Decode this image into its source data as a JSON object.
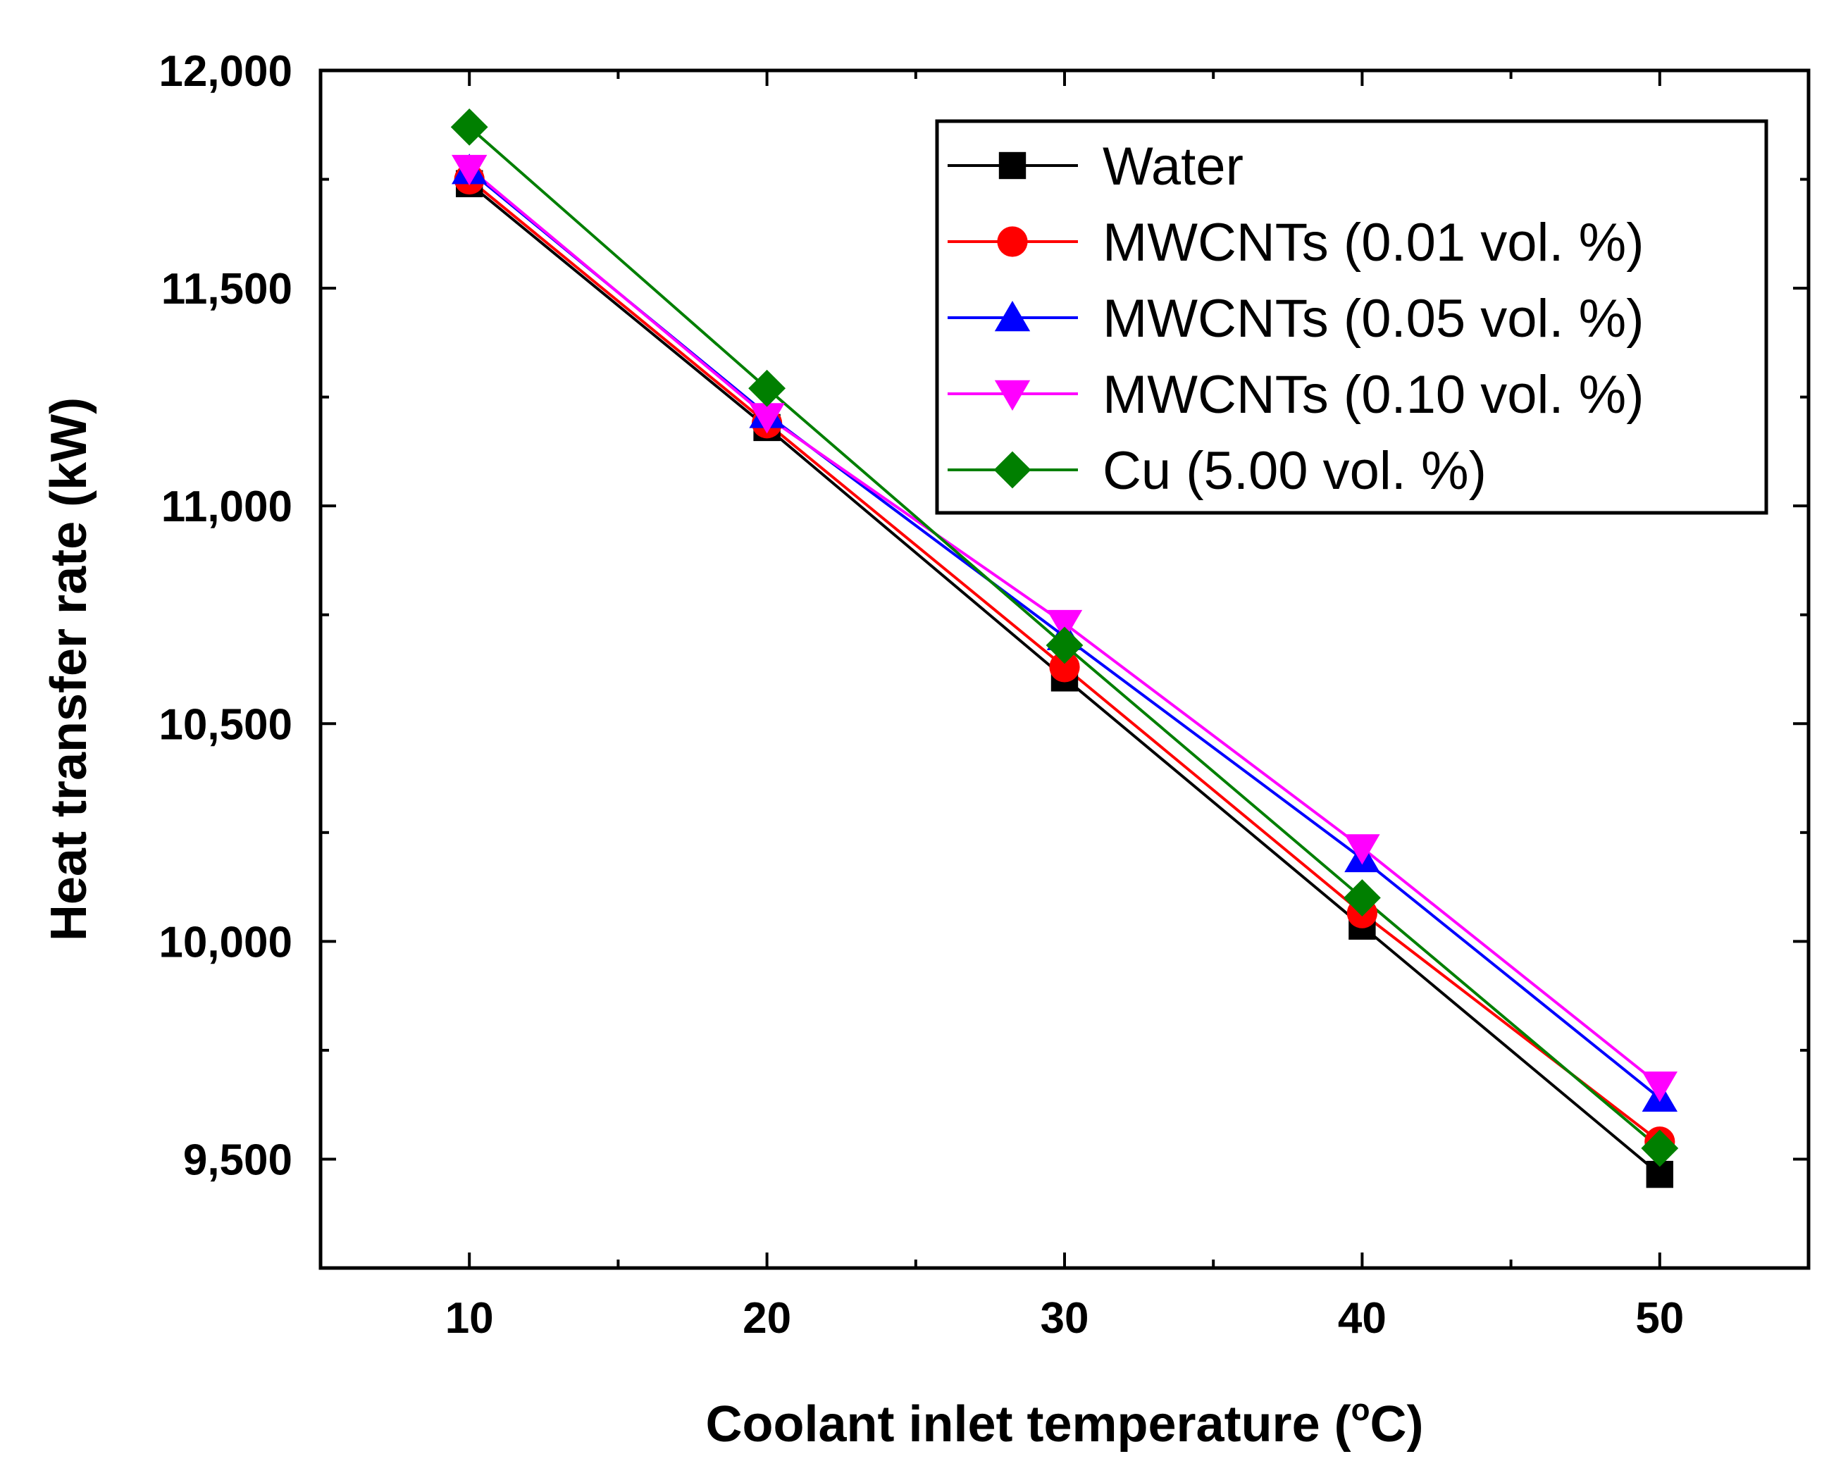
{
  "chart_data": {
    "type": "line",
    "title": "",
    "xlabel": "Coolant inlet temperature (",
    "xlabel_unit_degree": "o",
    "xlabel_unit_suffix": "C)",
    "ylabel": "Heat transfer rate (kW)",
    "x": [
      10,
      20,
      30,
      40,
      50
    ],
    "xlim": [
      5,
      55
    ],
    "ylim": [
      9250,
      12000
    ],
    "xticks": [
      10,
      20,
      30,
      40,
      50
    ],
    "xtick_labels": [
      "10",
      "20",
      "30",
      "40",
      "50"
    ],
    "yticks": [
      9500,
      10000,
      10500,
      11000,
      11500,
      12000
    ],
    "ytick_labels": [
      "9,500",
      "10,000",
      "10,500",
      "11,000",
      "11,500",
      "12,000"
    ],
    "grid": false,
    "legend_position": "top-right",
    "series": [
      {
        "name": "Water",
        "color": "#000000",
        "marker": "square",
        "values": [
          11740,
          11180,
          10605,
          10035,
          9465
        ]
      },
      {
        "name": "MWCNTs (0.01 vol. %)",
        "color": "#ff0000",
        "marker": "circle",
        "values": [
          11750,
          11190,
          10630,
          10065,
          9540
        ]
      },
      {
        "name": "MWCNTs (0.05 vol. %)",
        "color": "#0000ff",
        "marker": "triangle-up",
        "values": [
          11770,
          11210,
          10700,
          10190,
          9640
        ]
      },
      {
        "name": "MWCNTs (0.10 vol. %)",
        "color": "#ff00ff",
        "marker": "triangle-down",
        "values": [
          11775,
          11205,
          10730,
          10215,
          9670
        ]
      },
      {
        "name": "Cu (5.00 vol. %)",
        "color": "#007f00",
        "marker": "diamond",
        "values": [
          11870,
          11270,
          10680,
          10100,
          9525
        ]
      }
    ]
  }
}
